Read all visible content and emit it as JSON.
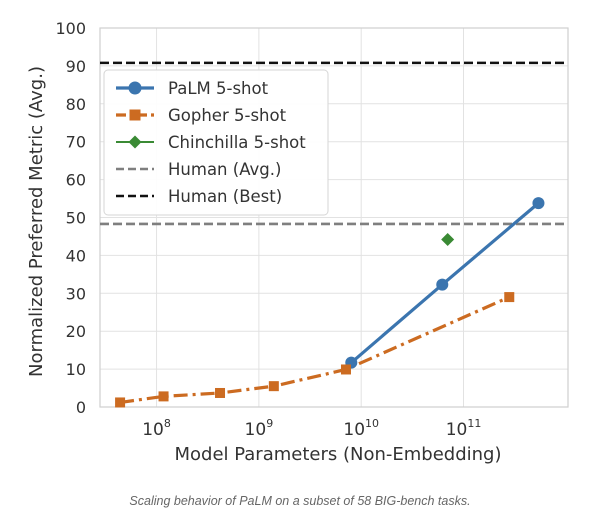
{
  "caption": "Scaling behavior of PaLM on a subset of 58 BIG-bench tasks.",
  "chart_data": {
    "type": "line",
    "xlabel": "Model Parameters (Non-Embedding)",
    "ylabel": "Normalized Preferred Metric (Avg.)",
    "xscale": "log",
    "xlim": [
      28000000.0,
      1050000000000.0
    ],
    "ylim": [
      0,
      100
    ],
    "yticks": [
      0,
      10,
      20,
      30,
      40,
      50,
      60,
      70,
      80,
      90,
      100
    ],
    "xticks": [
      {
        "base": "10",
        "exp": "8",
        "value": 100000000.0
      },
      {
        "base": "10",
        "exp": "9",
        "value": 1000000000.0
      },
      {
        "base": "10",
        "exp": "10",
        "value": 10000000000.0
      },
      {
        "base": "10",
        "exp": "11",
        "value": 100000000000.0
      }
    ],
    "grid": true,
    "legend_position": "upper-left",
    "series": [
      {
        "name": "PaLM 5-shot",
        "color": "#3b75af",
        "marker": "circle",
        "line": "solid",
        "x": [
          8000000000.0,
          62000000000.0,
          540000000000.0
        ],
        "y": [
          11.7,
          32.3,
          53.8
        ]
      },
      {
        "name": "Gopher 5-shot",
        "color": "#cc6b21",
        "marker": "square",
        "line": "dashdot",
        "x": [
          44000000.0,
          117000000.0,
          417000000.0,
          1400000000.0,
          7100000000.0,
          280000000000.0
        ],
        "y": [
          1.2,
          2.8,
          3.7,
          5.5,
          9.9,
          29.0
        ]
      },
      {
        "name": "Chinchilla 5-shot",
        "color": "#3a8a34",
        "marker": "diamond",
        "line": "none",
        "x": [
          70000000000.0
        ],
        "y": [
          44.2
        ]
      }
    ],
    "reference_lines": [
      {
        "name": "Human (Avg.)",
        "y": 48.3,
        "color": "#7f7f7f",
        "style": "dashed"
      },
      {
        "name": "Human (Best)",
        "y": 90.8,
        "color": "#111111",
        "style": "dashed"
      }
    ]
  }
}
